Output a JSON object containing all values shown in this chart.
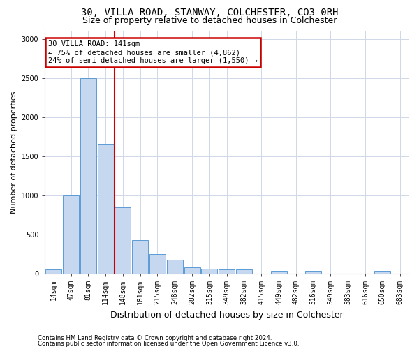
{
  "title": "30, VILLA ROAD, STANWAY, COLCHESTER, CO3 0RH",
  "subtitle": "Size of property relative to detached houses in Colchester",
  "xlabel": "Distribution of detached houses by size in Colchester",
  "ylabel": "Number of detached properties",
  "categories": [
    "14sqm",
    "47sqm",
    "81sqm",
    "114sqm",
    "148sqm",
    "181sqm",
    "215sqm",
    "248sqm",
    "282sqm",
    "315sqm",
    "349sqm",
    "382sqm",
    "415sqm",
    "449sqm",
    "482sqm",
    "516sqm",
    "549sqm",
    "583sqm",
    "616sqm",
    "650sqm",
    "683sqm"
  ],
  "values": [
    50,
    1000,
    2500,
    1650,
    850,
    430,
    250,
    175,
    75,
    60,
    55,
    55,
    0,
    35,
    0,
    35,
    0,
    0,
    0,
    35,
    0
  ],
  "bar_color": "#c5d8f0",
  "bar_edge_color": "#5b9bd5",
  "vline_pos": 3.5,
  "vline_color": "#cc0000",
  "annotation_title": "30 VILLA ROAD: 141sqm",
  "annotation_line1": "← 75% of detached houses are smaller (4,862)",
  "annotation_line2": "24% of semi-detached houses are larger (1,550) →",
  "annotation_box_color": "#ffffff",
  "annotation_box_edge": "#cc0000",
  "ylim": [
    0,
    3100
  ],
  "yticks": [
    0,
    500,
    1000,
    1500,
    2000,
    2500,
    3000
  ],
  "footer1": "Contains HM Land Registry data © Crown copyright and database right 2024.",
  "footer2": "Contains public sector information licensed under the Open Government Licence v3.0.",
  "bg_color": "#ffffff",
  "grid_color": "#d0d8e8",
  "title_fontsize": 10,
  "subtitle_fontsize": 9,
  "tick_fontsize": 7,
  "ylabel_fontsize": 8,
  "xlabel_fontsize": 9
}
